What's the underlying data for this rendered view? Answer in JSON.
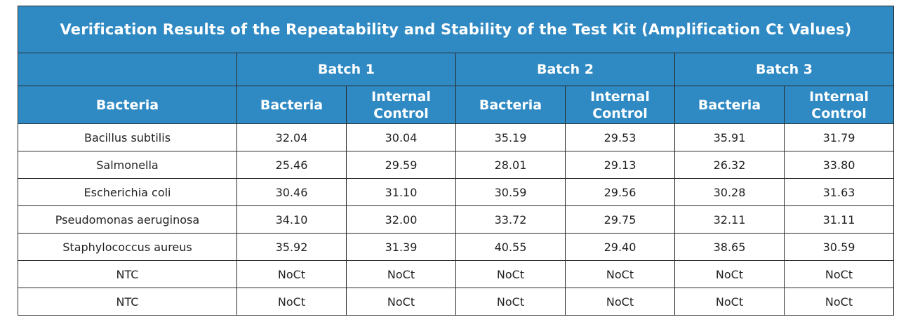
{
  "title": "Verification Results of the Repeatability and Stability of the Test Kit (Amplification Ct Values)",
  "batches": [
    "Batch 1",
    "Batch 2",
    "Batch 3"
  ],
  "subheaders": {
    "row_label": "Bacteria",
    "bacteria": "Bacteria",
    "internal_control_line1": "Internal",
    "internal_control_line2": "Control"
  },
  "rows": [
    {
      "name": "Bacillus subtilis",
      "values": [
        "32.04",
        "30.04",
        "35.19",
        "29.53",
        "35.91",
        "31.79"
      ]
    },
    {
      "name": "Salmonella",
      "values": [
        "25.46",
        "29.59",
        "28.01",
        "29.13",
        "26.32",
        "33.80"
      ]
    },
    {
      "name": "Escherichia coli",
      "values": [
        "30.46",
        "31.10",
        "30.59",
        "29.56",
        "30.28",
        "31.63"
      ]
    },
    {
      "name": "Pseudomonas aeruginosa",
      "values": [
        "34.10",
        "32.00",
        "33.72",
        "29.75",
        "32.11",
        "31.11"
      ]
    },
    {
      "name": "Staphylococcus aureus",
      "values": [
        "35.92",
        "31.39",
        "40.55",
        "29.40",
        "38.65",
        "30.59"
      ]
    },
    {
      "name": "NTC",
      "values": [
        "NoCt",
        "NoCt",
        "NoCt",
        "NoCt",
        "NoCt",
        "NoCt"
      ]
    },
    {
      "name": "NTC",
      "values": [
        "NoCt",
        "NoCt",
        "NoCt",
        "NoCt",
        "NoCt",
        "NoCt"
      ]
    }
  ],
  "colors": {
    "header_blue": "#2f8ac4",
    "header_text": "#ffffff",
    "border": "#2a2a2a"
  }
}
